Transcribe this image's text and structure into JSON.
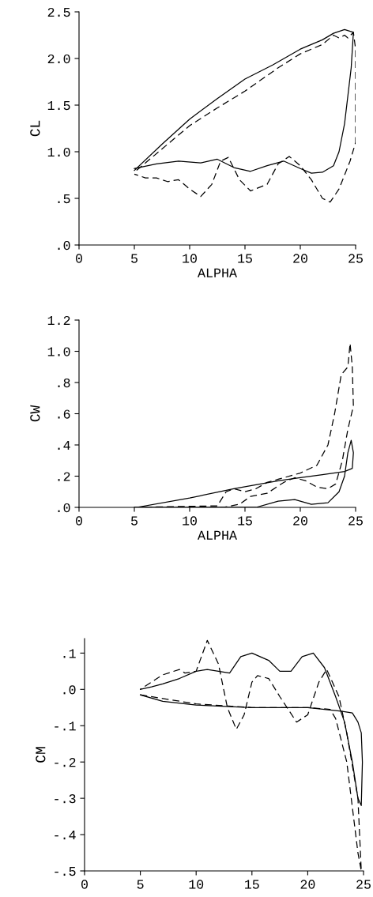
{
  "chart_data": [
    {
      "type": "line",
      "xlabel": "ALPHA",
      "ylabel": "CL",
      "xlim": [
        0,
        25
      ],
      "ylim": [
        0,
        2.5
      ],
      "xticks": [
        0,
        5,
        10,
        15,
        20,
        25
      ],
      "yticks": [
        {
          "value": 0,
          "label": ".0"
        },
        {
          "value": 0.5,
          "label": ".5"
        },
        {
          "value": 1.0,
          "label": "1.0"
        },
        {
          "value": 1.5,
          "label": "1.5"
        },
        {
          "value": 2.0,
          "label": "2.0"
        },
        {
          "value": 2.5,
          "label": "2.5"
        }
      ],
      "grid": false,
      "legend": false,
      "marker": "none",
      "series": [
        {
          "color": "#000000",
          "line_style": "solid",
          "x": [
            5,
            7.5,
            10,
            12.5,
            15,
            17.5,
            20,
            22,
            23,
            24,
            24.8,
            24.6,
            24.3,
            24,
            23.5,
            23,
            22,
            21,
            20,
            18.5,
            17,
            15.5,
            14,
            12.5,
            11,
            9,
            7,
            5
          ],
          "values": [
            0.8,
            1.08,
            1.35,
            1.57,
            1.78,
            1.93,
            2.1,
            2.2,
            2.27,
            2.31,
            2.28,
            1.9,
            1.6,
            1.3,
            1.0,
            0.85,
            0.78,
            0.77,
            0.82,
            0.9,
            0.85,
            0.79,
            0.83,
            0.92,
            0.88,
            0.9,
            0.87,
            0.82
          ]
        },
        {
          "color": "#000000",
          "line_style": "dashed",
          "x": [
            5.2,
            7.5,
            10,
            12.5,
            15,
            18,
            20,
            22,
            23,
            23.5,
            24,
            24.3,
            24.8,
            25,
            25,
            24.5,
            23.5,
            22.7,
            22,
            21,
            20,
            19,
            18,
            17,
            15.5,
            14.5,
            13.5,
            12.8,
            12,
            11,
            10,
            9,
            8,
            7,
            6,
            5
          ],
          "values": [
            0.8,
            1.03,
            1.28,
            1.47,
            1.65,
            1.9,
            2.05,
            2.15,
            2.25,
            2.22,
            2.25,
            2.22,
            2.28,
            2.1,
            1.1,
            0.9,
            0.6,
            0.46,
            0.5,
            0.7,
            0.85,
            0.95,
            0.87,
            0.65,
            0.58,
            0.7,
            0.94,
            0.9,
            0.65,
            0.52,
            0.6,
            0.7,
            0.68,
            0.72,
            0.72,
            0.76
          ]
        }
      ]
    },
    {
      "type": "line",
      "xlabel": "ALPHA",
      "ylabel": "CW",
      "xlim": [
        0,
        25
      ],
      "ylim": [
        0,
        1.2
      ],
      "xticks": [
        0,
        5,
        10,
        15,
        20,
        25
      ],
      "yticks": [
        {
          "value": 0,
          "label": ".0"
        },
        {
          "value": 0.2,
          "label": ".2"
        },
        {
          "value": 0.4,
          "label": ".4"
        },
        {
          "value": 0.6,
          "label": ".6"
        },
        {
          "value": 0.8,
          "label": ".8"
        },
        {
          "value": 1.0,
          "label": "1.0"
        },
        {
          "value": 1.2,
          "label": "1.2"
        }
      ],
      "grid": false,
      "legend": false,
      "marker": "none",
      "series": [
        {
          "color": "#000000",
          "line_style": "solid",
          "x": [
            5.2,
            10,
            14,
            18,
            20,
            22,
            24,
            24.7,
            24.8,
            24.6,
            24.3,
            24,
            23.5,
            22.5,
            21,
            19.5,
            18,
            16,
            14,
            12,
            10,
            5
          ],
          "values": [
            0.0,
            0.06,
            0.12,
            0.17,
            0.19,
            0.21,
            0.23,
            0.25,
            0.35,
            0.43,
            0.35,
            0.2,
            0.1,
            0.03,
            0.02,
            0.05,
            0.04,
            0.0,
            0.0,
            0.0,
            0.0,
            0.0
          ]
        },
        {
          "color": "#000000",
          "line_style": "dashed",
          "x": [
            5,
            12.5,
            13.3,
            14,
            15,
            16,
            17,
            18,
            20,
            21.5,
            22.5,
            23.1,
            23.7,
            24.3,
            24.5,
            24.7,
            24.8,
            24.3,
            23.8,
            23.2,
            22.5,
            21.5,
            20.5,
            19.5,
            18.5,
            17,
            15.5,
            14.5,
            13,
            5.5
          ],
          "values": [
            0.0,
            0.01,
            0.1,
            0.12,
            0.1,
            0.12,
            0.16,
            0.18,
            0.22,
            0.27,
            0.4,
            0.6,
            0.85,
            0.9,
            1.05,
            0.9,
            0.65,
            0.5,
            0.3,
            0.15,
            0.12,
            0.13,
            0.17,
            0.19,
            0.16,
            0.09,
            0.07,
            0.02,
            0.0,
            0.0
          ]
        }
      ]
    },
    {
      "type": "line",
      "ylabel": "CM",
      "xlim": [
        0,
        25
      ],
      "ylim": [
        -0.5,
        0.14
      ],
      "xticks": [
        0,
        5,
        10,
        15,
        20,
        25
      ],
      "yticks": [
        {
          "value": -0.5,
          "label": "-.5"
        },
        {
          "value": -0.4,
          "label": "-.4"
        },
        {
          "value": -0.3,
          "label": "-.3"
        },
        {
          "value": -0.2,
          "label": "-.2"
        },
        {
          "value": -0.1,
          "label": "-.1"
        },
        {
          "value": 0,
          "label": ".0"
        },
        {
          "value": 0.1,
          "label": ".1"
        }
      ],
      "grid": false,
      "legend": false,
      "marker": "none",
      "series": [
        {
          "color": "#000000",
          "line_style": "solid",
          "x": [
            5,
            7,
            10,
            15,
            20,
            23,
            24,
            24.5,
            24.8,
            24.9,
            24.8,
            24.5,
            24,
            23.3,
            22.5,
            21.5,
            20.5,
            19.5,
            18.5,
            17.5,
            16.5,
            15,
            14,
            13,
            12,
            11,
            10,
            8.5,
            7,
            6,
            5
          ],
          "values": [
            -0.015,
            -0.033,
            -0.043,
            -0.05,
            -0.05,
            -0.06,
            -0.065,
            -0.09,
            -0.12,
            -0.2,
            -0.32,
            -0.3,
            -0.2,
            -0.09,
            -0.02,
            0.06,
            0.1,
            0.09,
            0.05,
            0.05,
            0.08,
            0.1,
            0.09,
            0.045,
            0.05,
            0.055,
            0.05,
            0.03,
            0.015,
            0.007,
            0.0
          ]
        },
        {
          "color": "#000000",
          "line_style": "dashed",
          "x": [
            5,
            10,
            15,
            20,
            22,
            22.5,
            23.5,
            24.5,
            24.8,
            24.5,
            23.5,
            22.8,
            21.7,
            21,
            20,
            19,
            17.5,
            16.5,
            15.5,
            15,
            14.3,
            13.6,
            12.8,
            12,
            11,
            10,
            9,
            8.5,
            7,
            6,
            5
          ],
          "values": [
            -0.015,
            -0.04,
            -0.05,
            -0.05,
            -0.055,
            -0.08,
            -0.2,
            -0.45,
            -0.5,
            -0.3,
            -0.12,
            -0.02,
            0.055,
            0.02,
            -0.07,
            -0.09,
            -0.02,
            0.03,
            0.038,
            0.02,
            -0.07,
            -0.11,
            -0.05,
            0.07,
            0.135,
            0.05,
            0.045,
            0.055,
            0.04,
            0.02,
            0.0
          ]
        }
      ]
    }
  ]
}
